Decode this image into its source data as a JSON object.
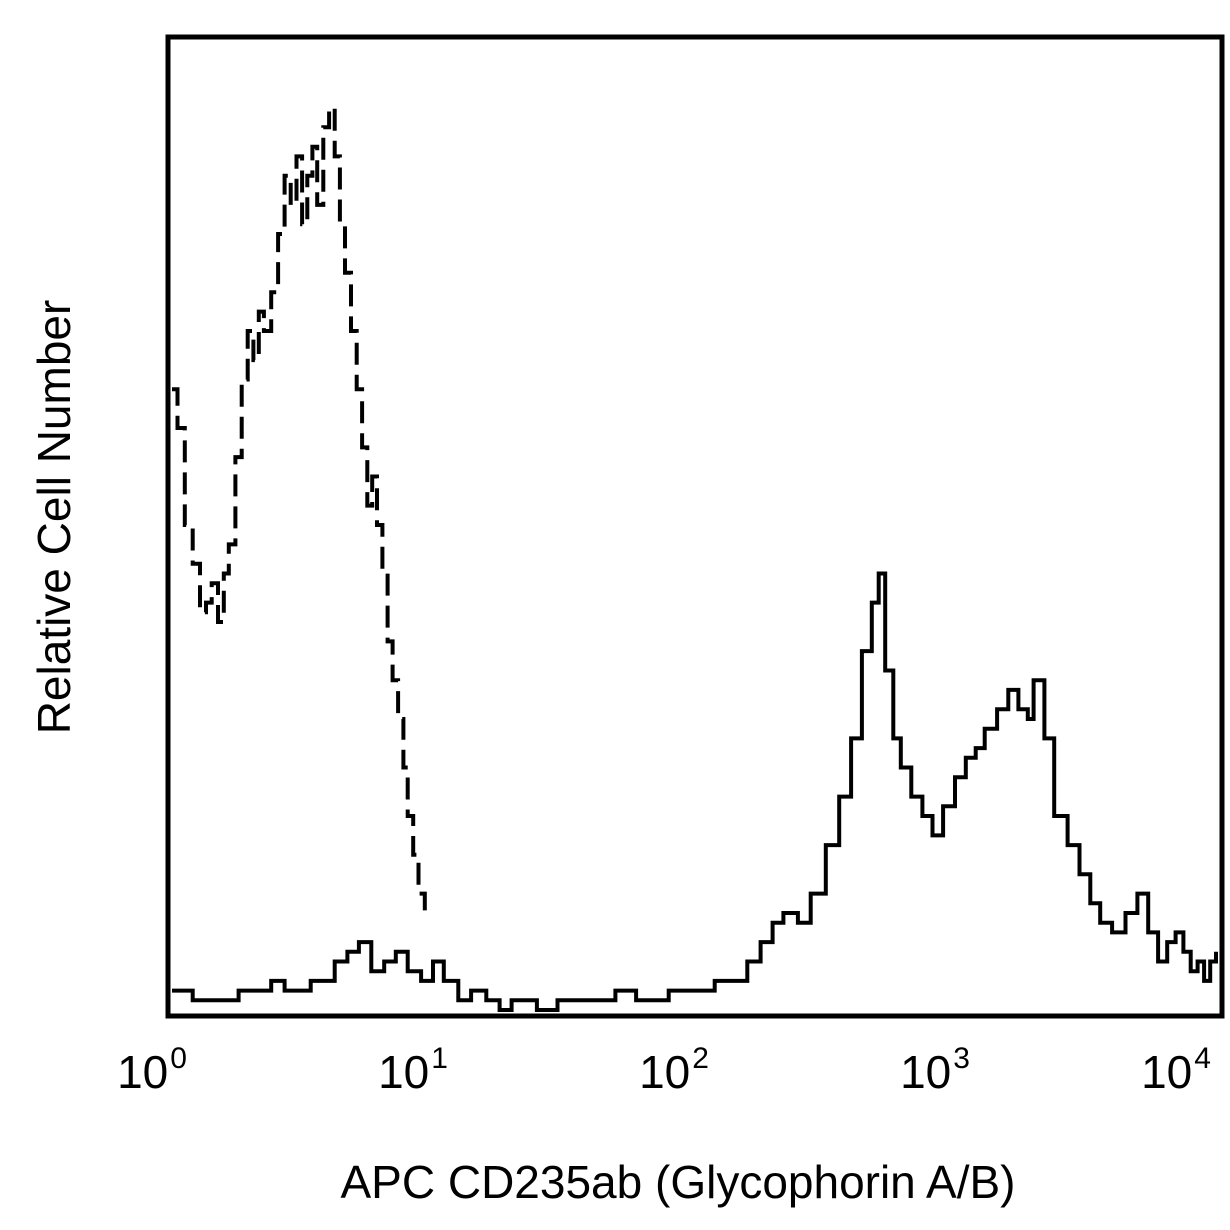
{
  "chart_data": {
    "type": "line",
    "title": "",
    "xlabel": "APC CD235ab (Glycophorin A/B)",
    "ylabel": "Relative Cell Number",
    "x_scale": "log",
    "xlim": [
      1,
      10000
    ],
    "ylim": [
      0,
      100
    ],
    "grid": false,
    "legend": "none",
    "x_ticks": [
      {
        "base": "10",
        "exp": "0",
        "value": 1
      },
      {
        "base": "10",
        "exp": "1",
        "value": 10
      },
      {
        "base": "10",
        "exp": "2",
        "value": 100
      },
      {
        "base": "10",
        "exp": "3",
        "value": 1000
      },
      {
        "base": "10",
        "exp": "4",
        "value": 10000
      }
    ],
    "series": [
      {
        "style": "dashed",
        "color": "#000000",
        "x": [
          1.0,
          1.05,
          1.12,
          1.2,
          1.28,
          1.35,
          1.42,
          1.5,
          1.58,
          1.65,
          1.75,
          1.85,
          1.95,
          2.05,
          2.15,
          2.25,
          2.4,
          2.55,
          2.7,
          2.85,
          3.0,
          3.15,
          3.3,
          3.45,
          3.6,
          3.8,
          4.0,
          4.2,
          4.4,
          4.6,
          4.85,
          5.1,
          5.35,
          5.6,
          5.85,
          6.1,
          6.4,
          6.7,
          7.0,
          7.35,
          7.7,
          8.0,
          8.4,
          8.8,
          9.3
        ],
        "y": [
          64,
          60,
          50,
          46,
          41,
          42,
          44,
          40,
          45,
          48,
          57,
          65,
          70,
          67,
          72,
          70,
          74,
          80,
          86,
          83,
          88,
          81,
          86,
          89,
          83,
          91,
          93,
          88,
          81,
          76,
          70,
          64,
          58,
          52,
          55,
          50,
          45,
          38,
          34,
          30,
          25,
          20,
          16,
          12,
          10
        ]
      },
      {
        "style": "solid",
        "color": "#000000",
        "x": [
          1.0,
          1.2,
          1.5,
          1.8,
          2.1,
          2.4,
          2.7,
          3.0,
          3.4,
          3.8,
          4.2,
          4.7,
          5.2,
          5.8,
          6.5,
          7.2,
          8.0,
          9.0,
          10.0,
          11.0,
          12.5,
          14.0,
          16.0,
          18.0,
          20.0,
          25.0,
          30.0,
          40.0,
          50.0,
          60.0,
          70.0,
          80.0,
          100,
          120,
          140,
          160,
          180,
          200,
          220,
          250,
          280,
          320,
          360,
          400,
          440,
          480,
          510,
          540,
          580,
          620,
          680,
          750,
          820,
          900,
          1000,
          1100,
          1200,
          1300,
          1450,
          1600,
          1750,
          1900,
          2000,
          2200,
          2400,
          2700,
          3000,
          3300,
          3600,
          4000,
          4500,
          5000,
          5500,
          6000,
          6500,
          7000,
          7500,
          8000,
          8500,
          9000,
          9500,
          10000
        ],
        "y": [
          2,
          1,
          1,
          2,
          2,
          3,
          2,
          2,
          3,
          3,
          5,
          6,
          7,
          4,
          5,
          6,
          4,
          3,
          5,
          3,
          1,
          2,
          1,
          0,
          1,
          0,
          1,
          1,
          2,
          1,
          1,
          2,
          2,
          3,
          3,
          5,
          7,
          9,
          10,
          9,
          12,
          17,
          22,
          28,
          37,
          42,
          45,
          35,
          28,
          25,
          22,
          20,
          18,
          21,
          24,
          26,
          27,
          29,
          31,
          33,
          31,
          30,
          34,
          28,
          20,
          17,
          14,
          11,
          9,
          8,
          10,
          12,
          8,
          5,
          7,
          8,
          6,
          4,
          5,
          3,
          5,
          6
        ]
      }
    ]
  }
}
